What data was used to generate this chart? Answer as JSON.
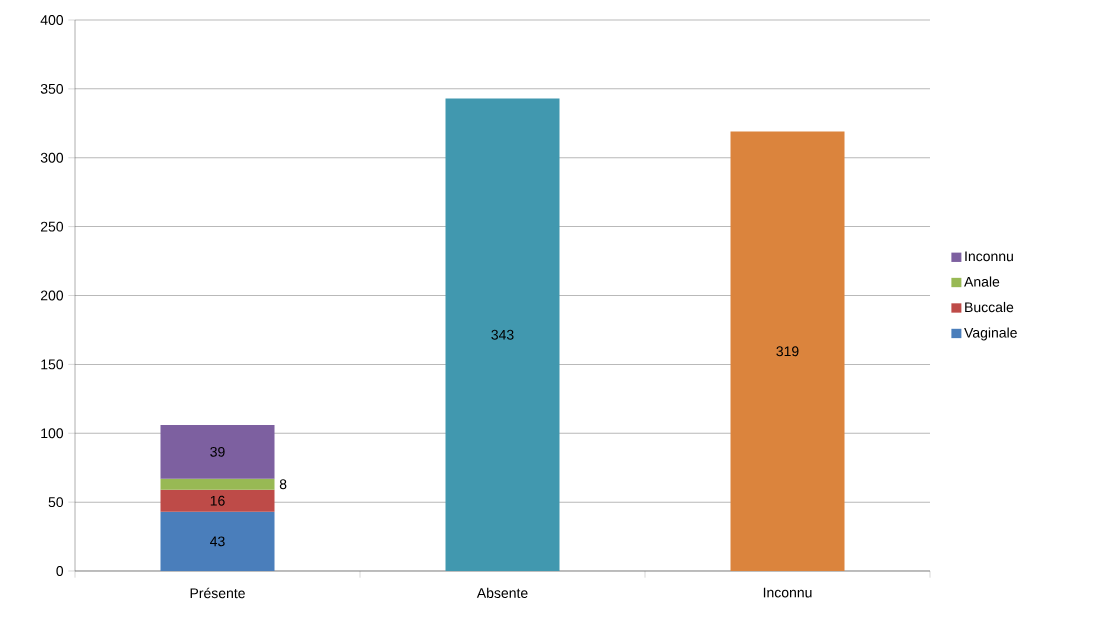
{
  "chart_data": {
    "type": "bar",
    "stacked": true,
    "categories": [
      "Présente",
      "Absente",
      "Inconnu"
    ],
    "series": [
      {
        "name": "Vaginale",
        "color": "#4a7ebb",
        "values": [
          43,
          null,
          null
        ]
      },
      {
        "name": "Buccale",
        "color": "#be4b48",
        "values": [
          16,
          null,
          null
        ]
      },
      {
        "name": "Anale",
        "color": "#98b954",
        "values": [
          8,
          null,
          null
        ]
      },
      {
        "name": "Inconnu",
        "color": "#7d60a0",
        "values": [
          39,
          null,
          null
        ]
      },
      {
        "color": "#4198af",
        "values": [
          null,
          343,
          null
        ]
      },
      {
        "color": "#db843d",
        "values": [
          null,
          null,
          319
        ]
      }
    ],
    "ylim": [
      0,
      400
    ],
    "yticks": [
      0,
      50,
      100,
      150,
      200,
      250,
      300,
      350,
      400
    ],
    "grid": "y",
    "legend": "right",
    "data_labels": true
  }
}
